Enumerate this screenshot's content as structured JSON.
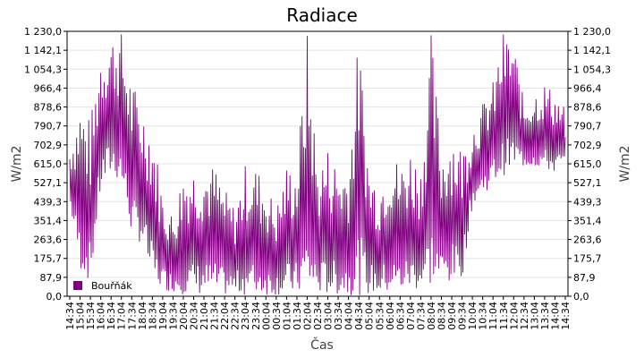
{
  "chart_data": {
    "type": "line",
    "title": "Radiace",
    "xlabel": "Čas",
    "ylabel": "W/m2",
    "ylabel_right": "W/m2",
    "ylim": [
      0,
      1230
    ],
    "y_ticks": [
      "0,0",
      "87,9",
      "175,7",
      "263,6",
      "351,4",
      "439,3",
      "527,1",
      "615,0",
      "702,9",
      "790,7",
      "878,6",
      "966,4",
      "1 054,3",
      "1 142,1",
      "1 230,0"
    ],
    "x_ticks": [
      "14:34",
      "15:04",
      "15:34",
      "16:04",
      "16:34",
      "17:04",
      "17:34",
      "18:04",
      "18:34",
      "19:04",
      "19:34",
      "20:04",
      "20:34",
      "21:04",
      "21:34",
      "22:04",
      "22:34",
      "23:04",
      "23:34",
      "00:04",
      "00:34",
      "01:04",
      "01:34",
      "02:04",
      "02:34",
      "03:04",
      "03:34",
      "04:04",
      "04:34",
      "05:04",
      "05:34",
      "06:04",
      "06:34",
      "07:04",
      "07:34",
      "08:04",
      "08:34",
      "09:04",
      "09:34",
      "10:04",
      "10:34",
      "11:04",
      "11:34",
      "12:04",
      "12:34",
      "13:04",
      "13:34",
      "14:04",
      "14:34"
    ],
    "grid": true,
    "legend_position": "bottom-left",
    "series": [
      {
        "name": "Bouřňák",
        "color": "#800080",
        "values": [
          {
            "t": "14:34",
            "lo": 420,
            "hi": 700
          },
          {
            "t": "15:04",
            "lo": 120,
            "hi": 930
          },
          {
            "t": "15:34",
            "lo": 60,
            "hi": 820
          },
          {
            "t": "16:04",
            "lo": 480,
            "hi": 1180
          },
          {
            "t": "16:34",
            "lo": 560,
            "hi": 1230
          },
          {
            "t": "17:04",
            "lo": 520,
            "hi": 1230
          },
          {
            "t": "17:34",
            "lo": 280,
            "hi": 1010
          },
          {
            "t": "18:04",
            "lo": 240,
            "hi": 900
          },
          {
            "t": "18:34",
            "lo": 60,
            "hi": 800
          },
          {
            "t": "19:04",
            "lo": 30,
            "hi": 480
          },
          {
            "t": "19:34",
            "lo": 20,
            "hi": 380
          },
          {
            "t": "20:04",
            "lo": 8,
            "hi": 600
          },
          {
            "t": "20:34",
            "lo": 5,
            "hi": 615
          },
          {
            "t": "21:04",
            "lo": 5,
            "hi": 615
          },
          {
            "t": "21:34",
            "lo": 5,
            "hi": 615
          },
          {
            "t": "22:04",
            "lo": 5,
            "hi": 500
          },
          {
            "t": "22:34",
            "lo": 5,
            "hi": 420
          },
          {
            "t": "23:04",
            "lo": 5,
            "hi": 615
          },
          {
            "t": "23:34",
            "lo": 5,
            "hi": 615
          },
          {
            "t": "00:04",
            "lo": 5,
            "hi": 530
          },
          {
            "t": "00:34",
            "lo": 5,
            "hi": 420
          },
          {
            "t": "01:04",
            "lo": 5,
            "hi": 615
          },
          {
            "t": "01:34",
            "lo": 5,
            "hi": 615
          },
          {
            "t": "02:04",
            "lo": 5,
            "hi": 1230
          },
          {
            "t": "02:34",
            "lo": 5,
            "hi": 615
          },
          {
            "t": "03:04",
            "lo": 5,
            "hi": 700
          },
          {
            "t": "03:34",
            "lo": 5,
            "hi": 615
          },
          {
            "t": "04:04",
            "lo": 5,
            "hi": 615
          },
          {
            "t": "04:34",
            "lo": 5,
            "hi": 1230
          },
          {
            "t": "05:04",
            "lo": 5,
            "hi": 615
          },
          {
            "t": "05:34",
            "lo": 5,
            "hi": 530
          },
          {
            "t": "06:04",
            "lo": 8,
            "hi": 700
          },
          {
            "t": "06:34",
            "lo": 15,
            "hi": 615
          },
          {
            "t": "07:04",
            "lo": 25,
            "hi": 700
          },
          {
            "t": "07:34",
            "lo": 30,
            "hi": 615
          },
          {
            "t": "08:04",
            "lo": 40,
            "hi": 1230
          },
          {
            "t": "08:34",
            "lo": 50,
            "hi": 700
          },
          {
            "t": "09:04",
            "lo": 60,
            "hi": 800
          },
          {
            "t": "09:34",
            "lo": 80,
            "hi": 700
          },
          {
            "t": "10:04",
            "lo": 420,
            "hi": 800
          },
          {
            "t": "10:34",
            "lo": 470,
            "hi": 900
          },
          {
            "t": "11:04",
            "lo": 520,
            "hi": 1000
          },
          {
            "t": "11:34",
            "lo": 560,
            "hi": 1230
          },
          {
            "t": "12:04",
            "lo": 590,
            "hi": 1200
          },
          {
            "t": "12:34",
            "lo": 600,
            "hi": 900
          },
          {
            "t": "13:04",
            "lo": 600,
            "hi": 960
          },
          {
            "t": "13:34",
            "lo": 580,
            "hi": 1000
          },
          {
            "t": "14:04",
            "lo": 570,
            "hi": 950
          },
          {
            "t": "14:34",
            "lo": 600,
            "hi": 880
          }
        ]
      }
    ]
  }
}
